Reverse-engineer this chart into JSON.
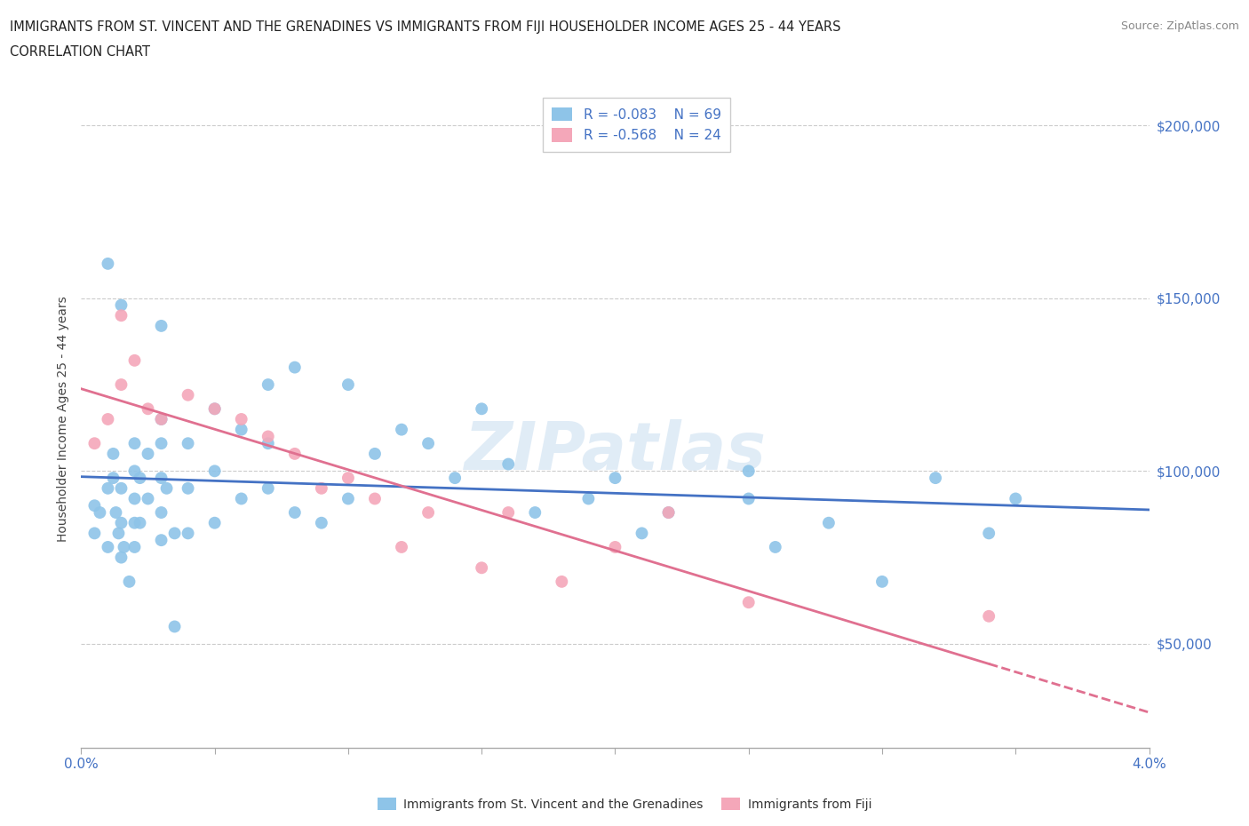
{
  "title_line1": "IMMIGRANTS FROM ST. VINCENT AND THE GRENADINES VS IMMIGRANTS FROM FIJI HOUSEHOLDER INCOME AGES 25 - 44 YEARS",
  "title_line2": "CORRELATION CHART",
  "source_text": "Source: ZipAtlas.com",
  "ylabel": "Householder Income Ages 25 - 44 years",
  "xlim": [
    0.0,
    0.04
  ],
  "ylim": [
    20000,
    210000
  ],
  "xticks": [
    0.0,
    0.005,
    0.01,
    0.015,
    0.02,
    0.025,
    0.03,
    0.035,
    0.04
  ],
  "ytick_positions": [
    50000,
    100000,
    150000,
    200000
  ],
  "ytick_labels": [
    "$50,000",
    "$100,000",
    "$150,000",
    "$200,000"
  ],
  "watermark": "ZIPatlas",
  "color_blue": "#8ec4e8",
  "color_pink": "#f4a7b9",
  "color_blue_line": "#4472c4",
  "color_pink_line": "#e07090",
  "color_text_blue": "#4472c4",
  "background_color": "#ffffff",
  "blue_scatter_x": [
    0.0005,
    0.0005,
    0.0007,
    0.001,
    0.001,
    0.0012,
    0.0012,
    0.0013,
    0.0014,
    0.0015,
    0.0015,
    0.0015,
    0.0016,
    0.0018,
    0.002,
    0.002,
    0.002,
    0.002,
    0.002,
    0.0022,
    0.0022,
    0.0025,
    0.0025,
    0.003,
    0.003,
    0.003,
    0.003,
    0.003,
    0.0032,
    0.0035,
    0.004,
    0.004,
    0.004,
    0.005,
    0.005,
    0.005,
    0.006,
    0.006,
    0.007,
    0.007,
    0.008,
    0.008,
    0.009,
    0.01,
    0.01,
    0.011,
    0.012,
    0.013,
    0.014,
    0.015,
    0.016,
    0.017,
    0.019,
    0.02,
    0.021,
    0.022,
    0.025,
    0.026,
    0.028,
    0.03,
    0.032,
    0.034,
    0.035,
    0.001,
    0.0015,
    0.003,
    0.0035,
    0.007,
    0.025
  ],
  "blue_scatter_y": [
    90000,
    82000,
    88000,
    95000,
    78000,
    105000,
    98000,
    88000,
    82000,
    95000,
    85000,
    75000,
    78000,
    68000,
    108000,
    100000,
    92000,
    85000,
    78000,
    98000,
    85000,
    105000,
    92000,
    115000,
    108000,
    98000,
    88000,
    80000,
    95000,
    82000,
    108000,
    95000,
    82000,
    118000,
    100000,
    85000,
    112000,
    92000,
    125000,
    95000,
    130000,
    88000,
    85000,
    125000,
    92000,
    105000,
    112000,
    108000,
    98000,
    118000,
    102000,
    88000,
    92000,
    98000,
    82000,
    88000,
    92000,
    78000,
    85000,
    68000,
    98000,
    82000,
    92000,
    160000,
    148000,
    142000,
    55000,
    108000,
    100000
  ],
  "pink_scatter_x": [
    0.0005,
    0.001,
    0.0015,
    0.002,
    0.0025,
    0.003,
    0.004,
    0.005,
    0.006,
    0.007,
    0.008,
    0.009,
    0.01,
    0.011,
    0.012,
    0.013,
    0.015,
    0.016,
    0.018,
    0.02,
    0.022,
    0.025,
    0.034,
    0.0015
  ],
  "pink_scatter_y": [
    108000,
    115000,
    125000,
    132000,
    118000,
    115000,
    122000,
    118000,
    115000,
    110000,
    105000,
    95000,
    98000,
    92000,
    78000,
    88000,
    72000,
    88000,
    68000,
    78000,
    88000,
    62000,
    58000,
    145000
  ]
}
